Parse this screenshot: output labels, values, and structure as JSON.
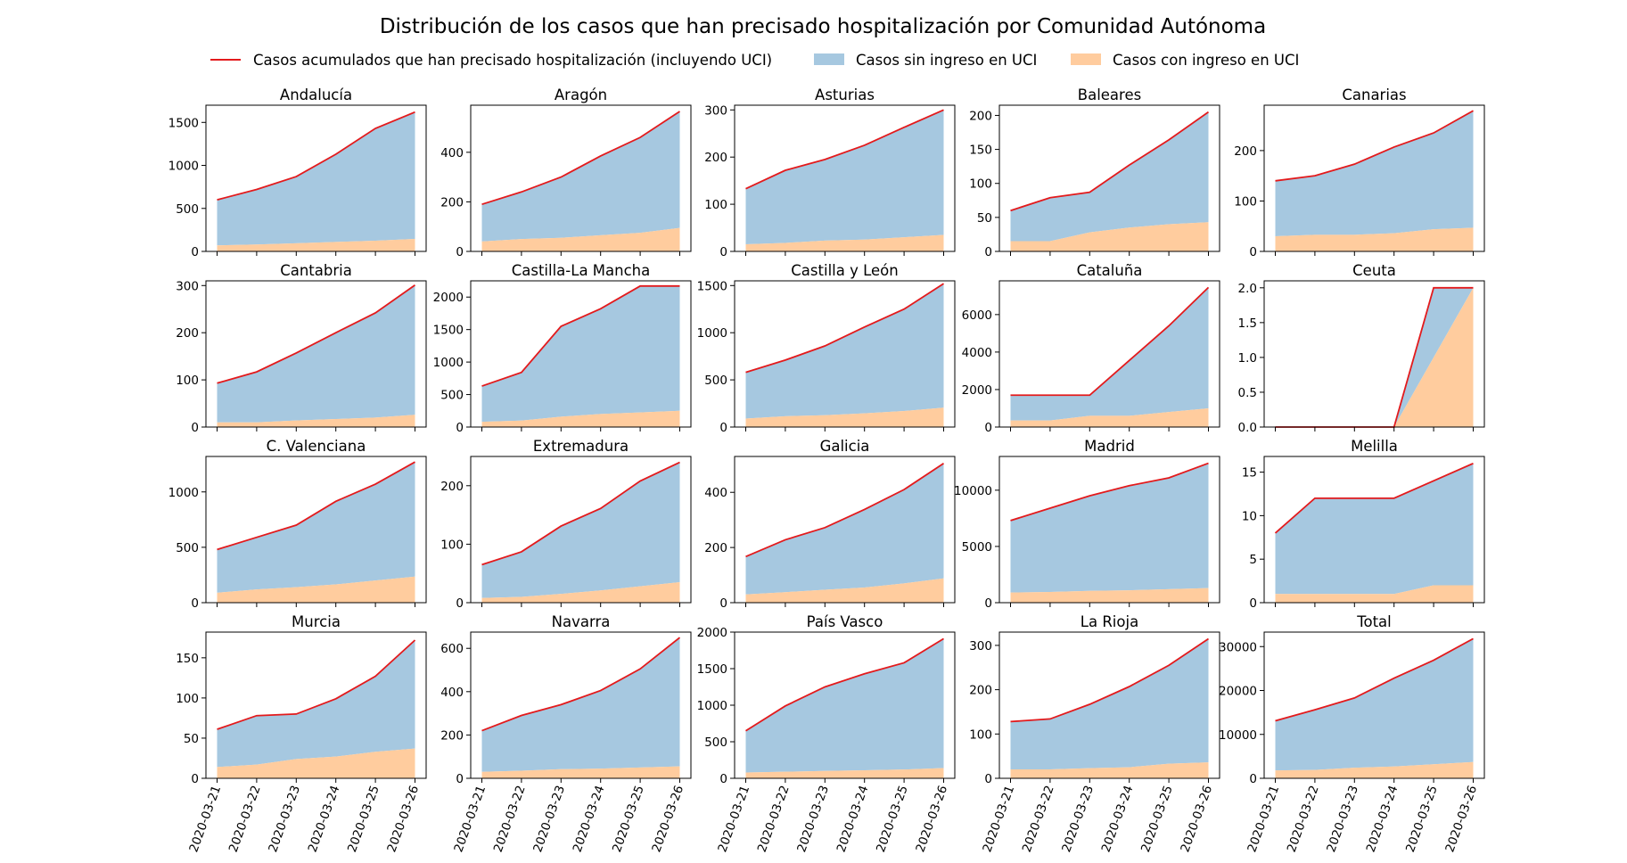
{
  "chart_data": {
    "type": "area",
    "title": "Distribución de los casos que han precisado hospitalización por Comunidad Autónoma",
    "x": [
      "2020-03-21",
      "2020-03-22",
      "2020-03-23",
      "2020-03-24",
      "2020-03-25",
      "2020-03-26"
    ],
    "legend": {
      "placement": "top-center",
      "entries": [
        {
          "name": "Casos acumulados que han precisado hospitalización (incluyendo UCI)",
          "type": "line",
          "color": "#e31a1c"
        },
        {
          "name": "Casos sin ingreso en UCI",
          "type": "area",
          "color": "#a6c8e0"
        },
        {
          "name": "Casos con ingreso en UCI",
          "type": "area",
          "color": "#ffcc9e"
        }
      ]
    },
    "colors": {
      "total_line": "#e31a1c",
      "no_uci": "#a6c8e0",
      "uci": "#ffcc9e"
    },
    "grid": false,
    "panels": [
      {
        "name": "Andalucía",
        "ylim": [
          0,
          1700
        ],
        "yticks": [
          "0",
          "500",
          "1000",
          "1500"
        ],
        "ytick_values": [
          0,
          500,
          1000,
          1500
        ],
        "total": [
          600,
          720,
          870,
          1130,
          1430,
          1620
        ],
        "uci": [
          70,
          80,
          95,
          110,
          125,
          145
        ]
      },
      {
        "name": "Aragón",
        "ylim": [
          0,
          590
        ],
        "yticks": [
          "0",
          "200",
          "400"
        ],
        "ytick_values": [
          0,
          200,
          400
        ],
        "total": [
          190,
          240,
          300,
          385,
          460,
          565
        ],
        "uci": [
          40,
          50,
          55,
          65,
          75,
          95
        ]
      },
      {
        "name": "Asturias",
        "ylim": [
          0,
          310
        ],
        "yticks": [
          "0",
          "100",
          "200",
          "300"
        ],
        "ytick_values": [
          0,
          100,
          200,
          300
        ],
        "total": [
          133,
          172,
          195,
          225,
          263,
          300
        ],
        "uci": [
          15,
          18,
          23,
          25,
          30,
          35
        ]
      },
      {
        "name": "Baleares",
        "ylim": [
          0,
          215
        ],
        "yticks": [
          "0",
          "50",
          "100",
          "150",
          "200"
        ],
        "ytick_values": [
          0,
          50,
          100,
          150,
          200
        ],
        "total": [
          60,
          79,
          87,
          127,
          164,
          205
        ],
        "uci": [
          15,
          15,
          28,
          35,
          40,
          43
        ]
      },
      {
        "name": "Canarias",
        "ylim": [
          0,
          290
        ],
        "yticks": [
          "0",
          "100",
          "200"
        ],
        "ytick_values": [
          0,
          100,
          200
        ],
        "total": [
          140,
          150,
          173,
          207,
          235,
          279
        ],
        "uci": [
          30,
          33,
          33,
          36,
          44,
          47
        ]
      },
      {
        "name": "Cantabria",
        "ylim": [
          0,
          310
        ],
        "yticks": [
          "0",
          "100",
          "200",
          "300"
        ],
        "ytick_values": [
          0,
          100,
          200,
          300
        ],
        "total": [
          93,
          117,
          157,
          200,
          242,
          301
        ],
        "uci": [
          10,
          10,
          14,
          17,
          20,
          26
        ]
      },
      {
        "name": "Castilla-La Mancha",
        "ylim": [
          0,
          2250
        ],
        "yticks": [
          "0",
          "500",
          "1000",
          "1500",
          "2000"
        ],
        "ytick_values": [
          0,
          500,
          1000,
          1500,
          2000
        ],
        "total": [
          630,
          840,
          1550,
          1820,
          2170,
          2170
        ],
        "uci": [
          80,
          100,
          160,
          200,
          225,
          250
        ]
      },
      {
        "name": "Castilla y León",
        "ylim": [
          0,
          1550
        ],
        "yticks": [
          "0",
          "500",
          "1000",
          "1500"
        ],
        "ytick_values": [
          0,
          500,
          1000,
          1500
        ],
        "total": [
          580,
          710,
          860,
          1060,
          1250,
          1520
        ],
        "uci": [
          90,
          115,
          125,
          145,
          170,
          205
        ]
      },
      {
        "name": "Cataluña",
        "ylim": [
          0,
          7800
        ],
        "yticks": [
          "0",
          "2000",
          "4000",
          "6000"
        ],
        "ytick_values": [
          0,
          2000,
          4000,
          6000
        ],
        "total": [
          1700,
          1700,
          1700,
          3550,
          5400,
          7450
        ],
        "uci": [
          350,
          350,
          600,
          600,
          800,
          1000
        ]
      },
      {
        "name": "Ceuta",
        "ylim": [
          0,
          2.1
        ],
        "yticks": [
          "0.0",
          "0.5",
          "1.0",
          "1.5",
          "2.0"
        ],
        "ytick_values": [
          0,
          0.5,
          1.0,
          1.5,
          2.0
        ],
        "total": [
          0,
          0,
          0,
          0,
          2,
          2
        ],
        "uci": [
          0,
          0,
          0,
          0,
          1,
          2
        ]
      },
      {
        "name": "C. Valenciana",
        "ylim": [
          0,
          1320
        ],
        "yticks": [
          "0",
          "500",
          "1000"
        ],
        "ytick_values": [
          0,
          500,
          1000
        ],
        "total": [
          480,
          590,
          700,
          915,
          1070,
          1270
        ],
        "uci": [
          90,
          120,
          140,
          165,
          200,
          235
        ]
      },
      {
        "name": "Extremadura",
        "ylim": [
          0,
          250
        ],
        "yticks": [
          "0",
          "100",
          "200"
        ],
        "ytick_values": [
          0,
          100,
          200
        ],
        "total": [
          65,
          87,
          131,
          161,
          208,
          240
        ],
        "uci": [
          8,
          10,
          15,
          21,
          28,
          35
        ]
      },
      {
        "name": "Galicia",
        "ylim": [
          0,
          530
        ],
        "yticks": [
          "0",
          "200",
          "400"
        ],
        "ytick_values": [
          0,
          200,
          400
        ],
        "total": [
          167,
          228,
          272,
          338,
          410,
          505
        ],
        "uci": [
          30,
          38,
          47,
          55,
          70,
          88
        ]
      },
      {
        "name": "Madrid",
        "ylim": [
          0,
          13000
        ],
        "yticks": [
          "0",
          "5000",
          "10000"
        ],
        "ytick_values": [
          0,
          5000,
          10000
        ],
        "total": [
          7300,
          8400,
          9500,
          10400,
          11100,
          12400
        ],
        "uci": [
          900,
          950,
          1050,
          1100,
          1200,
          1300
        ]
      },
      {
        "name": "Melilla",
        "ylim": [
          0,
          16.8
        ],
        "yticks": [
          "0",
          "5",
          "10",
          "15"
        ],
        "ytick_values": [
          0,
          5,
          10,
          15
        ],
        "total": [
          8,
          12,
          12,
          12,
          14,
          16
        ],
        "uci": [
          1,
          1,
          1,
          1,
          2,
          2
        ]
      },
      {
        "name": "Murcia",
        "ylim": [
          0,
          182
        ],
        "yticks": [
          "0",
          "50",
          "100",
          "150"
        ],
        "ytick_values": [
          0,
          50,
          100,
          150
        ],
        "total": [
          61,
          78,
          80,
          99,
          127,
          172
        ],
        "uci": [
          14,
          17,
          24,
          27,
          33,
          37
        ]
      },
      {
        "name": "Navarra",
        "ylim": [
          0,
          675
        ],
        "yticks": [
          "0",
          "200",
          "400",
          "600"
        ],
        "ytick_values": [
          0,
          200,
          400,
          600
        ],
        "total": [
          220,
          290,
          340,
          405,
          505,
          650
        ],
        "uci": [
          30,
          35,
          42,
          45,
          50,
          55
        ]
      },
      {
        "name": "País Vasco",
        "ylim": [
          0,
          2000
        ],
        "yticks": [
          "0",
          "500",
          "1000",
          "1500",
          "2000"
        ],
        "ytick_values": [
          0,
          500,
          1000,
          1500,
          2000
        ],
        "total": [
          650,
          990,
          1250,
          1430,
          1580,
          1910
        ],
        "uci": [
          80,
          90,
          100,
          110,
          120,
          140
        ]
      },
      {
        "name": "La Rioja",
        "ylim": [
          0,
          330
        ],
        "yticks": [
          "0",
          "100",
          "200",
          "300"
        ],
        "ytick_values": [
          0,
          100,
          200,
          300
        ],
        "total": [
          128,
          134,
          167,
          207,
          255,
          315
        ],
        "uci": [
          20,
          20,
          23,
          25,
          33,
          36
        ]
      },
      {
        "name": "Total",
        "ylim": [
          0,
          33300
        ],
        "yticks": [
          "0",
          "10000",
          "20000",
          "30000"
        ],
        "ytick_values": [
          0,
          10000,
          20000,
          30000
        ],
        "total": [
          13100,
          15600,
          18300,
          22800,
          26900,
          31800
        ],
        "uci": [
          1800,
          1900,
          2400,
          2700,
          3200,
          3700
        ]
      }
    ]
  }
}
